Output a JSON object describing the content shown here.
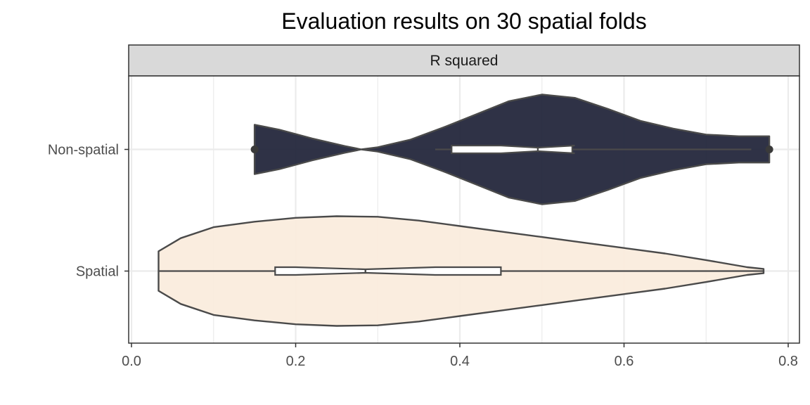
{
  "chart_data": {
    "type": "violin",
    "title": "Evaluation results on 30 spatial folds",
    "facet_label": "R squared",
    "xlabel": "",
    "ylabel": "",
    "xlim": [
      0.0,
      0.8
    ],
    "x_ticks": [
      "0.0",
      "0.2",
      "0.4",
      "0.6",
      "0.8"
    ],
    "grid": true,
    "legend": "none",
    "categories": [
      "Non-spatial",
      "Spatial"
    ],
    "series": [
      {
        "category": "Non-spatial",
        "color": "#1d2136",
        "summary": {
          "min": 0.37,
          "q1": 0.39,
          "median": 0.495,
          "q3": 0.537,
          "max": 0.755,
          "notch_low": 0.45,
          "notch_high": 0.54
        },
        "outliers": [
          0.15,
          0.777
        ],
        "density": [
          {
            "x": 0.15,
            "d": 0.45
          },
          {
            "x": 0.18,
            "d": 0.36
          },
          {
            "x": 0.22,
            "d": 0.2
          },
          {
            "x": 0.26,
            "d": 0.06
          },
          {
            "x": 0.28,
            "d": 0.0
          },
          {
            "x": 0.3,
            "d": 0.04
          },
          {
            "x": 0.34,
            "d": 0.18
          },
          {
            "x": 0.38,
            "d": 0.4
          },
          {
            "x": 0.42,
            "d": 0.64
          },
          {
            "x": 0.46,
            "d": 0.88
          },
          {
            "x": 0.5,
            "d": 1.0
          },
          {
            "x": 0.54,
            "d": 0.94
          },
          {
            "x": 0.58,
            "d": 0.74
          },
          {
            "x": 0.62,
            "d": 0.52
          },
          {
            "x": 0.66,
            "d": 0.38
          },
          {
            "x": 0.7,
            "d": 0.27
          },
          {
            "x": 0.74,
            "d": 0.24
          },
          {
            "x": 0.777,
            "d": 0.24
          }
        ]
      },
      {
        "category": "Spatial",
        "color": "#faebdc",
        "summary": {
          "min": 0.033,
          "q1": 0.175,
          "median": 0.285,
          "q3": 0.45,
          "max": 0.77,
          "notch_low": 0.2,
          "notch_high": 0.37
        },
        "outliers": [],
        "density": [
          {
            "x": 0.033,
            "d": 0.36
          },
          {
            "x": 0.06,
            "d": 0.6
          },
          {
            "x": 0.1,
            "d": 0.8
          },
          {
            "x": 0.15,
            "d": 0.9
          },
          {
            "x": 0.2,
            "d": 0.97
          },
          {
            "x": 0.25,
            "d": 1.0
          },
          {
            "x": 0.3,
            "d": 0.99
          },
          {
            "x": 0.35,
            "d": 0.92
          },
          {
            "x": 0.4,
            "d": 0.82
          },
          {
            "x": 0.45,
            "d": 0.72
          },
          {
            "x": 0.5,
            "d": 0.62
          },
          {
            "x": 0.55,
            "d": 0.52
          },
          {
            "x": 0.6,
            "d": 0.42
          },
          {
            "x": 0.65,
            "d": 0.32
          },
          {
            "x": 0.7,
            "d": 0.2
          },
          {
            "x": 0.75,
            "d": 0.07
          },
          {
            "x": 0.77,
            "d": 0.04
          }
        ]
      }
    ]
  }
}
